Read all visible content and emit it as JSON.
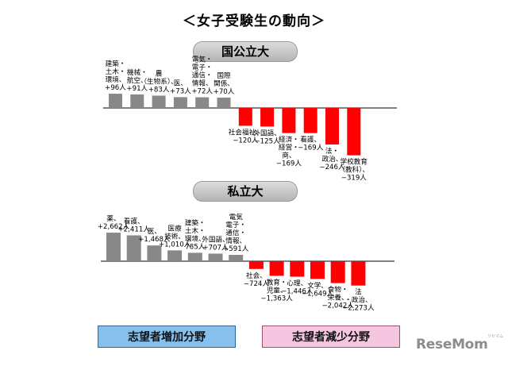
{
  "page_title": "＜女子受験生の動向＞",
  "legend": {
    "increase_label": "志望者増加分野",
    "decrease_label": "志望者減少分野",
    "increase_color": "#888888",
    "decrease_color": "#ff0000"
  },
  "brand": {
    "logo": "ReseMom",
    "sub": "リセマム"
  },
  "chart_data": [
    {
      "type": "bar",
      "title": "国公立大",
      "unit": "人",
      "categories": [
        "建築・土木・環境",
        "機械・航空",
        "農（生物系）",
        "医",
        "電気・電子・通信・情報",
        "国際関係",
        "社会福祉",
        "外国語",
        "経済・経営・商",
        "看護",
        "法・政治",
        "学校教育（教科）"
      ],
      "values": [
        96,
        91,
        83,
        73,
        72,
        70,
        -120,
        -125,
        -169,
        -169,
        -246,
        -319
      ],
      "labels": [
        [
          "建築・",
          "土木・",
          "環境、",
          "+96人"
        ],
        [
          "機械・",
          "航空、",
          "+91人"
        ],
        [
          "農",
          "（生物系）、",
          "+83人"
        ],
        [
          "医、",
          "+73人"
        ],
        [
          "電気・",
          "電子・",
          "通信・",
          "情報、",
          "+72人"
        ],
        [
          "国際",
          "関係、",
          "+70人"
        ],
        [
          "社会福祉、",
          "−120人"
        ],
        [
          "外国語、",
          "−125人"
        ],
        [
          "経済・",
          "経営・",
          "商、",
          "−169人"
        ],
        [
          "看護、",
          "−169人"
        ],
        [
          "法・",
          "政治、",
          "−246人"
        ],
        [
          "学校教育",
          "（教科）、",
          "−319人"
        ]
      ]
    },
    {
      "type": "bar",
      "title": "私立大",
      "unit": "人",
      "categories": [
        "薬",
        "看護",
        "医",
        "医療技術",
        "建築・土木・環境",
        "外国語",
        "電気・電子・通信・情報",
        "社会",
        "教育・児童",
        "心理",
        "文学",
        "食物・栄養",
        "法・政治"
      ],
      "values": [
        2662,
        2411,
        1468,
        1010,
        785,
        707,
        591,
        -724,
        -1363,
        -1446,
        -1649,
        -2042,
        -2273
      ],
      "labels": [
        [
          "薬、",
          "+2,662人"
        ],
        [
          "看護、",
          "+2,411人"
        ],
        [
          "医、",
          "+1,468人"
        ],
        [
          "医療",
          "技術、",
          "+1,010人"
        ],
        [
          "建築・",
          "土木・",
          "環境、",
          "785人"
        ],
        [
          "外国語、",
          "+707人"
        ],
        [
          "電気",
          "電子・",
          "通信・",
          "情報、",
          "+591人"
        ],
        [
          "社会、",
          "−724人"
        ],
        [
          "教育・",
          "児童、",
          "−1,363人"
        ],
        [
          "心理、",
          "−1,446人"
        ],
        [
          "文学、",
          "−1,649人"
        ],
        [
          "食物・",
          "栄養、",
          "−2,042人"
        ],
        [
          "法",
          "・政治、",
          "−2,273人"
        ]
      ]
    }
  ]
}
